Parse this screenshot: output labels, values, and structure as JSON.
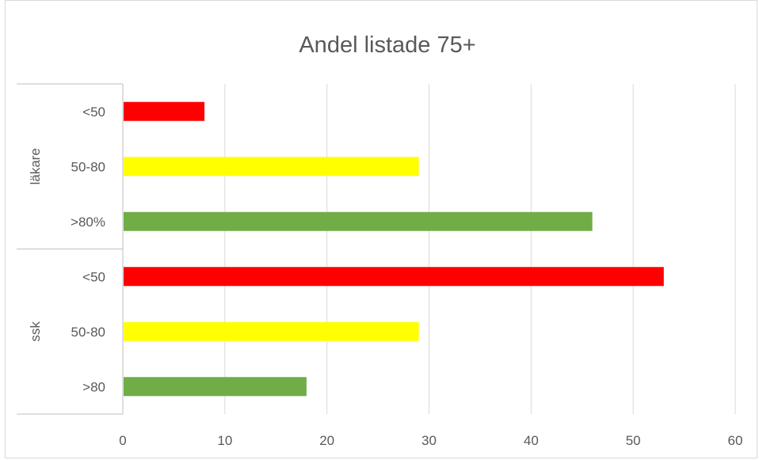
{
  "chart_data": {
    "type": "bar",
    "orientation": "horizontal",
    "title": "Andel listade 75+",
    "xlabel": "",
    "ylabel": "",
    "xlim": [
      0,
      60
    ],
    "x_ticks": [
      0,
      10,
      20,
      30,
      40,
      50,
      60
    ],
    "grid": true,
    "legend": "none",
    "groups": [
      {
        "label": "läkare",
        "categories": [
          {
            "label": "<50",
            "value": 8,
            "color": "#ff0000"
          },
          {
            "label": "50-80",
            "value": 29,
            "color": "#ffff00"
          },
          {
            "label": ">80%",
            "value": 46,
            "color": "#70ad47"
          }
        ]
      },
      {
        "label": "ssk",
        "categories": [
          {
            "label": "<50",
            "value": 53,
            "color": "#ff0000"
          },
          {
            "label": "50-80",
            "value": 29,
            "color": "#ffff00"
          },
          {
            "label": ">80",
            "value": 18,
            "color": "#70ad47"
          }
        ]
      }
    ]
  }
}
